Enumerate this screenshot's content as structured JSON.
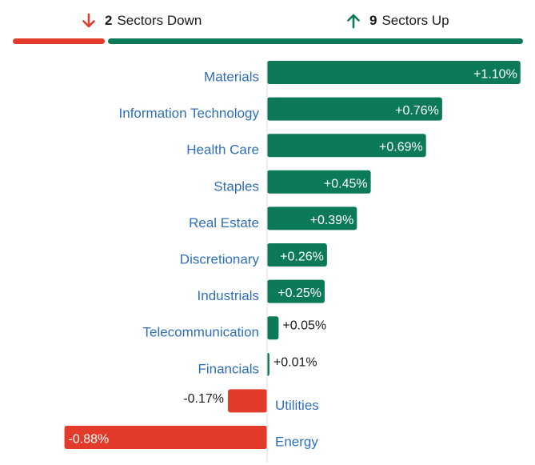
{
  "summary": {
    "down_count": "2",
    "down_label": "Sectors Down",
    "up_count": "9",
    "up_label": "Sectors Up",
    "down_color": "#e23b2a",
    "up_color": "#0c7a58",
    "down_icon": "arrow-down-icon",
    "up_icon": "arrow-up-icon"
  },
  "chart_data": {
    "type": "bar",
    "orientation": "horizontal",
    "title": "",
    "xlabel": "",
    "ylabel": "",
    "xlim": [
      -0.95,
      1.2
    ],
    "grid": false,
    "legend": "none",
    "categories": [
      "Materials",
      "Information Technology",
      "Health Care",
      "Staples",
      "Real Estate",
      "Discretionary",
      "Industrials",
      "Telecommunication",
      "Financials",
      "Utilities",
      "Energy"
    ],
    "values": [
      1.1,
      0.76,
      0.69,
      0.45,
      0.39,
      0.26,
      0.25,
      0.05,
      0.01,
      -0.17,
      -0.88
    ],
    "value_labels": [
      "+1.10%",
      "+0.76%",
      "+0.69%",
      "+0.45%",
      "+0.39%",
      "+0.26%",
      "+0.25%",
      "+0.05%",
      "+0.01%",
      "-0.17%",
      "-0.88%"
    ],
    "positive_color": "#0c7a58",
    "negative_color": "#e23b2a",
    "label_color": "#2f6fba"
  }
}
